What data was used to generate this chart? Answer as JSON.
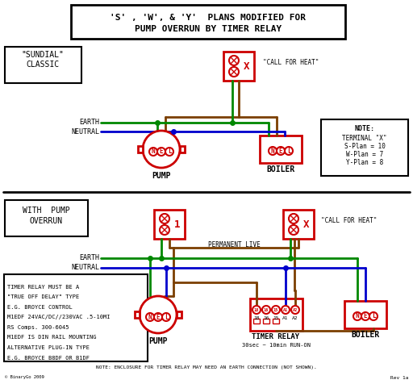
{
  "bg_color": "#ffffff",
  "black": "#000000",
  "red": "#cc0000",
  "green": "#008800",
  "blue": "#0000cc",
  "brown": "#7B3F00",
  "title1": "'S' , 'W', & 'Y'  PLANS MODIFIED FOR",
  "title2": "PUMP OVERRUN BY TIMER RELAY",
  "sundial_label": "\"SUNDIAL\"\nCLASSIC",
  "pump_overrun_label": "WITH  PUMP\nOVERRUN",
  "call_heat": "\"CALL FOR HEAT\"",
  "permanent_live": "PERMANENT LIVE",
  "earth": "EARTH",
  "neutral": "NEUTRAL",
  "note_title": "NOTE:",
  "note_line1": "TERMINAL \"X\"",
  "note_line2": "S-Plan = 10",
  "note_line3": "W-Plan = 7",
  "note_line4": "Y-Plan = 8",
  "timer_text": "TIMER RELAY MUST BE A\n\"TRUE OFF DELAY\" TYPE\nE.G. BROYCE CONTROL\nM1EDF 24VAC/DC//230VAC .5-10MI\nRS Comps. 300-6045\nM1EDF IS DIN RAIL MOUNTING\nALTERNATIVE PLUG-IN TYPE\nE.G. BROYCE B8DF OR B1DF",
  "bottom_note": "NOTE: ENCLOSURE FOR TIMER RELAY MAY NEED AN EARTH CONNECTION (NOT SHOWN).",
  "rev": "Rev 1a",
  "copyright": "© BinaryGo 2009"
}
